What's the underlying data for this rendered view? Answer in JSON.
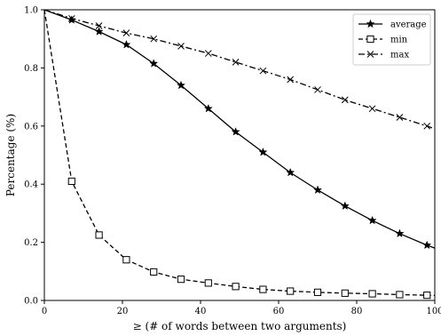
{
  "chart_data": {
    "type": "line",
    "title": "",
    "xlabel": "≥ (# of words between two arguments)",
    "ylabel": "Percentage (%)",
    "xlim": [
      0,
      100
    ],
    "ylim": [
      0,
      1.0
    ],
    "xticks": [
      "0",
      "20",
      "40",
      "60",
      "80",
      "100"
    ],
    "yticks": [
      "0.0",
      "0.2",
      "0.4",
      "0.6",
      "0.8",
      "1.0"
    ],
    "grid": false,
    "legend_position": "top-right",
    "series": [
      {
        "name": "average",
        "line": "solid",
        "marker": "star",
        "points": [
          [
            0,
            1.0
          ],
          [
            7,
            0.965
          ],
          [
            14,
            0.925
          ],
          [
            21,
            0.88
          ],
          [
            28,
            0.815
          ],
          [
            35,
            0.74
          ],
          [
            42,
            0.66
          ],
          [
            49,
            0.58
          ],
          [
            56,
            0.51
          ],
          [
            63,
            0.44
          ],
          [
            70,
            0.38
          ],
          [
            77,
            0.325
          ],
          [
            84,
            0.275
          ],
          [
            91,
            0.23
          ],
          [
            98,
            0.19
          ],
          [
            100,
            0.18
          ]
        ]
      },
      {
        "name": "min",
        "line": "dashed",
        "marker": "square",
        "points": [
          [
            0,
            1.0
          ],
          [
            7,
            0.41
          ],
          [
            14,
            0.225
          ],
          [
            21,
            0.14
          ],
          [
            28,
            0.098
          ],
          [
            35,
            0.073
          ],
          [
            42,
            0.06
          ],
          [
            49,
            0.048
          ],
          [
            56,
            0.038
          ],
          [
            63,
            0.032
          ],
          [
            70,
            0.028
          ],
          [
            77,
            0.025
          ],
          [
            84,
            0.023
          ],
          [
            91,
            0.02
          ],
          [
            98,
            0.018
          ],
          [
            100,
            0.017
          ]
        ]
      },
      {
        "name": "max",
        "line": "dashdot",
        "marker": "x",
        "points": [
          [
            0,
            1.0
          ],
          [
            7,
            0.97
          ],
          [
            14,
            0.945
          ],
          [
            21,
            0.92
          ],
          [
            28,
            0.9
          ],
          [
            35,
            0.875
          ],
          [
            42,
            0.85
          ],
          [
            49,
            0.82
          ],
          [
            56,
            0.79
          ],
          [
            63,
            0.76
          ],
          [
            70,
            0.725
          ],
          [
            77,
            0.69
          ],
          [
            84,
            0.66
          ],
          [
            91,
            0.63
          ],
          [
            98,
            0.6
          ],
          [
            100,
            0.59
          ]
        ]
      }
    ]
  }
}
